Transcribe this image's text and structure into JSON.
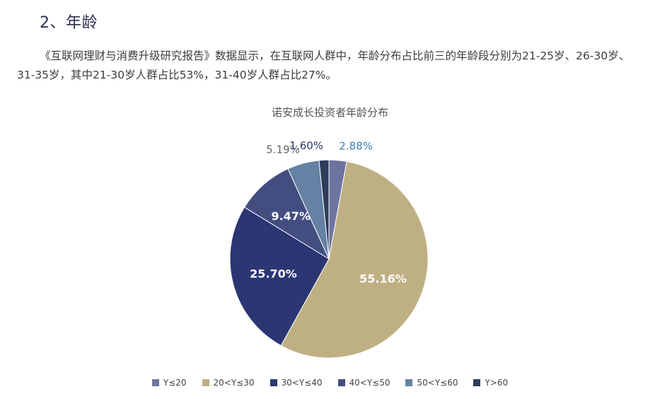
{
  "section": {
    "title": "2、年龄"
  },
  "paragraph": "《互联网理财与消费升级研究报告》数据显示，在互联网人群中，年龄分布占比前三的年龄段分别为21-25岁、26-30岁、31-35岁，其中21-30岁人群占比53%，31-40岁人群占比27%。",
  "chart_data": {
    "type": "pie",
    "title": "诺安成长投资者年龄分布",
    "legend_position": "bottom",
    "slices": [
      {
        "label": "Y≤20",
        "value": 2.88,
        "display": "2.88%",
        "color": "#6e74a0"
      },
      {
        "label": "20<Y≤30",
        "value": 55.16,
        "display": "55.16%",
        "color": "#bfb083"
      },
      {
        "label": "30<Y≤40",
        "value": 25.7,
        "display": "25.70%",
        "color": "#2b3672"
      },
      {
        "label": "40<Y≤50",
        "value": 9.47,
        "display": "9.47%",
        "color": "#434d80"
      },
      {
        "label": "50<Y≤60",
        "value": 5.19,
        "display": "5.19%",
        "color": "#6581a3"
      },
      {
        "label": "Y>60",
        "value": 1.6,
        "display": "1.60%",
        "color": "#2e3d5c"
      }
    ]
  }
}
